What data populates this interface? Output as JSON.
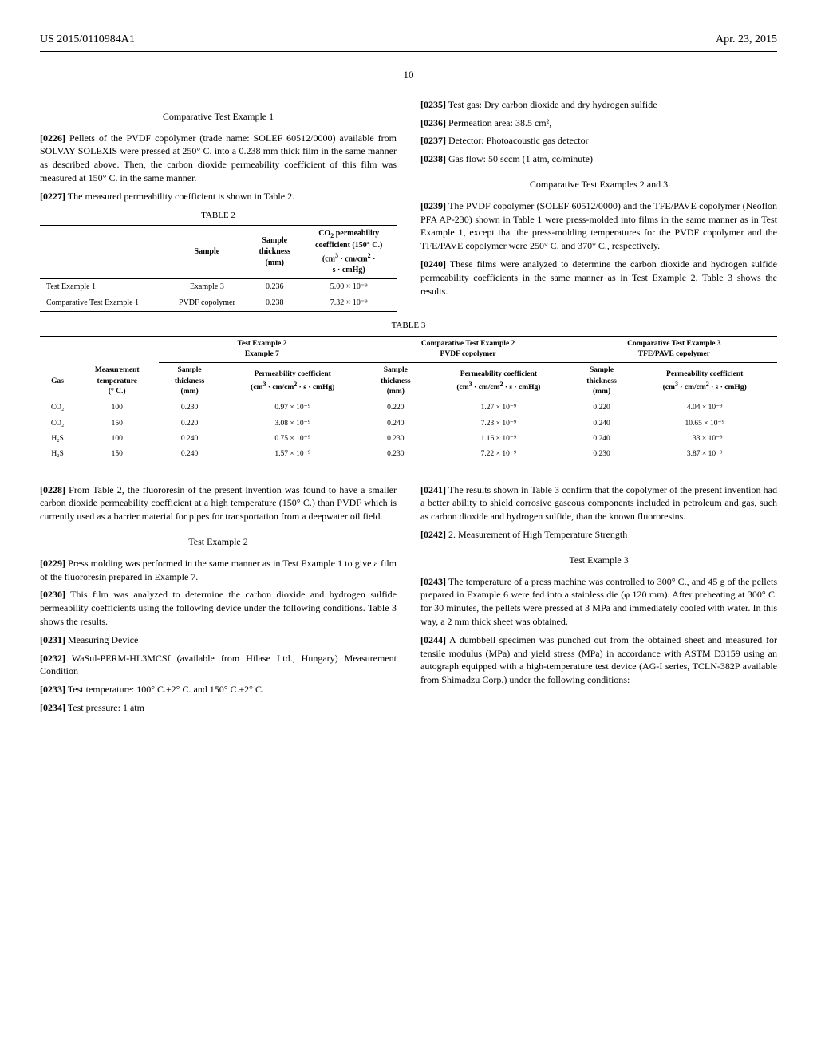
{
  "header": {
    "pub_number": "US 2015/0110984A1",
    "date": "Apr. 23, 2015"
  },
  "page_number": "10",
  "left_col": {
    "comp_test_1_title": "Comparative Test Example 1",
    "p0226_num": "[0226]",
    "p0226": "Pellets of the PVDF copolymer (trade name: SOLEF 60512/0000) available from SOLVAY SOLEXIS were pressed at 250° C. into a 0.238 mm thick film in the same manner as described above. Then, the carbon dioxide permeability coefficient of this film was measured at 150° C. in the same manner.",
    "p0227_num": "[0227]",
    "p0227": "The measured permeability coefficient is shown in Table 2.",
    "table2_title": "TABLE 2",
    "table2": {
      "headers": {
        "sample": "Sample",
        "thickness": "Sample\nthickness\n(mm)",
        "perm": "CO₂ permeability\ncoefficient (150° C.)\n(cm³ · cm/cm² ·\ns · cmHg)"
      },
      "rows": [
        [
          "Test Example 1",
          "Example 3",
          "0.236",
          "5.00 × 10⁻⁹"
        ],
        [
          "Comparative Test Example 1",
          "PVDF copolymer",
          "0.238",
          "7.32 × 10⁻⁹"
        ]
      ]
    },
    "p0228_num": "[0228]",
    "p0228": "From Table 2, the fluororesin of the present invention was found to have a smaller carbon dioxide permeability coefficient at a high temperature (150° C.) than PVDF which is currently used as a barrier material for pipes for transportation from a deepwater oil field.",
    "test_ex2_title": "Test Example 2",
    "p0229_num": "[0229]",
    "p0229": "Press molding was performed in the same manner as in Test Example 1 to give a film of the fluororesin prepared in Example 7.",
    "p0230_num": "[0230]",
    "p0230": "This film was analyzed to determine the carbon dioxide and hydrogen sulfide permeability coefficients using the following device under the following conditions. Table 3 shows the results.",
    "p0231_num": "[0231]",
    "p0231": "Measuring Device",
    "p0232_num": "[0232]",
    "p0232": "WaSul-PERM-HL3MCSf (available from Hilase Ltd., Hungary) Measurement Condition",
    "p0233_num": "[0233]",
    "p0233": "Test temperature: 100° C.±2° C. and 150° C.±2° C.",
    "p0234_num": "[0234]",
    "p0234": "Test pressure: 1 atm"
  },
  "right_col": {
    "p0235_num": "[0235]",
    "p0235": "Test gas: Dry carbon dioxide and dry hydrogen sulfide",
    "p0236_num": "[0236]",
    "p0236": "Permeation area: 38.5 cm²,",
    "p0237_num": "[0237]",
    "p0237": "Detector: Photoacoustic gas detector",
    "p0238_num": "[0238]",
    "p0238": "Gas flow: 50 sccm (1 atm, cc/minute)",
    "comp_test_23_title": "Comparative Test Examples 2 and 3",
    "p0239_num": "[0239]",
    "p0239": "The PVDF copolymer (SOLEF 60512/0000) and the TFE/PAVE copolymer (Neoflon PFA AP-230) shown in Table 1 were press-molded into films in the same manner as in Test Example 1, except that the press-molding temperatures for the PVDF copolymer and the TFE/PAVE copolymer were 250° C. and 370° C., respectively.",
    "p0240_num": "[0240]",
    "p0240": "These films were analyzed to determine the carbon dioxide and hydrogen sulfide permeability coefficients in the same manner as in Test Example 2. Table 3 shows the results.",
    "p0241_num": "[0241]",
    "p0241": "The results shown in Table 3 confirm that the copolymer of the present invention had a better ability to shield corrosive gaseous components included in petroleum and gas, such as carbon dioxide and hydrogen sulfide, than the known fluororesins.",
    "p0242_num": "[0242]",
    "p0242": "2. Measurement of High Temperature Strength",
    "test_ex3_title": "Test Example 3",
    "p0243_num": "[0243]",
    "p0243": "The temperature of a press machine was controlled to 300° C., and 45 g of the pellets prepared in Example 6 were fed into a stainless die (φ 120 mm). After preheating at 300° C. for 30 minutes, the pellets were pressed at 3 MPa and immediately cooled with water. In this way, a 2 mm thick sheet was obtained.",
    "p0244_num": "[0244]",
    "p0244": "A dumbbell specimen was punched out from the obtained sheet and measured for tensile modulus (MPa) and yield stress (MPa) in accordance with ASTM D3159 using an autograph equipped with a high-temperature test device (AG-I series, TCLN-382P available from Shimadzu Corp.) under the following conditions:"
  },
  "table3_title": "TABLE 3",
  "table3": {
    "group_headers": {
      "g1a": "Test Example 2",
      "g1b": "Example 7",
      "g2a": "Comparative Test Example 2",
      "g2b": "PVDF copolymer",
      "g3a": "Comparative Test Example 3",
      "g3b": "TFE/PAVE copolymer"
    },
    "col_headers": {
      "gas": "Gas",
      "temp": "Measurement\ntemperature\n(° C.)",
      "thickness": "Sample\nthickness\n(mm)",
      "perm": "Permeability coefficient\n(cm³ · cm/cm² · s · cmHg)"
    },
    "rows": [
      [
        "CO₂",
        "100",
        "0.230",
        "0.97 × 10⁻⁹",
        "0.220",
        "1.27 × 10⁻⁹",
        "0.220",
        "4.04 × 10⁻⁹"
      ],
      [
        "CO₂",
        "150",
        "0.220",
        "3.08 × 10⁻⁹",
        "0.240",
        "7.23 × 10⁻⁹",
        "0.240",
        "10.65 × 10⁻⁹"
      ],
      [
        "H₂S",
        "100",
        "0.240",
        "0.75 × 10⁻⁹",
        "0.230",
        "1.16 × 10⁻⁹",
        "0.240",
        "1.33 × 10⁻⁹"
      ],
      [
        "H₂S",
        "150",
        "0.240",
        "1.57 × 10⁻⁹",
        "0.230",
        "7.22 × 10⁻⁹",
        "0.230",
        "3.87 × 10⁻⁹"
      ]
    ]
  }
}
